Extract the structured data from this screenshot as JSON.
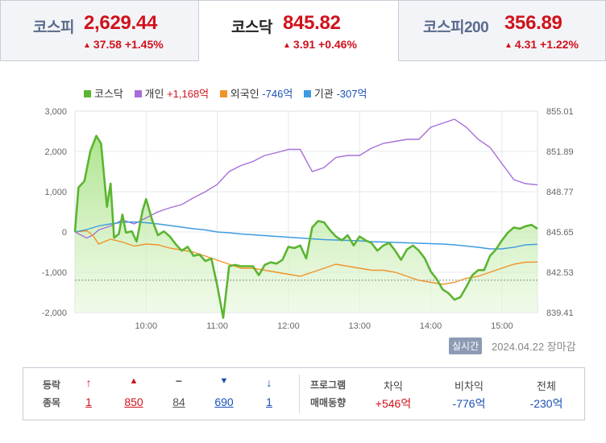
{
  "tabs": [
    {
      "name": "코스피",
      "value": "2,629.44",
      "change": "37.58 +1.45%",
      "active": false
    },
    {
      "name": "코스닥",
      "value": "845.82",
      "change": "3.91 +0.46%",
      "active": true
    },
    {
      "name": "코스피200",
      "value": "356.89",
      "change": "4.31 +1.22%",
      "active": false
    }
  ],
  "legend": {
    "kosdaq": {
      "label": "코스닥",
      "color": "#5cb531"
    },
    "individual": {
      "label": "개인",
      "value": "+1,168억",
      "color": "#a86fd8"
    },
    "foreign": {
      "label": "외국인",
      "value": "-746억",
      "color": "#f0932b"
    },
    "institution": {
      "label": "기관",
      "value": "-307억",
      "color": "#3d9be0"
    }
  },
  "status": {
    "realtime": "실시간",
    "date": "2024.04.22",
    "session": "장마감"
  },
  "breadth": {
    "header_top": "등락",
    "header_bottom": "종목",
    "upper_limit": "1",
    "rise": "850",
    "flat": "84",
    "fall": "690",
    "lower_limit": "1"
  },
  "program": {
    "label_top": "프로그램",
    "label_bottom": "매매동향",
    "arbitrage_label": "차익",
    "arbitrage_value": "+546억",
    "non_arbitrage_label": "비차익",
    "non_arbitrage_value": "-776억",
    "total_label": "전체",
    "total_value": "-230억"
  },
  "chart_data": {
    "type": "line",
    "x_ticks": [
      "10:00",
      "11:00",
      "12:00",
      "13:00",
      "14:00",
      "15:00"
    ],
    "y_left_ticks": [
      "3,000",
      "2,000",
      "1,000",
      "0",
      "-1,000",
      "-2,000"
    ],
    "y_left_range": [
      -2000,
      3000
    ],
    "y_right_ticks": [
      "855.01",
      "851.89",
      "848.77",
      "845.65",
      "842.53",
      "839.41"
    ],
    "y_right_range": [
      839.41,
      855.01
    ],
    "reference_line": 841.91,
    "time_range": [
      "09:00",
      "15:30"
    ],
    "series": [
      {
        "name": "코스닥",
        "axis": "right",
        "color": "#5cb531",
        "x": [
          "09:00",
          "09:03",
          "09:08",
          "09:13",
          "09:18",
          "09:22",
          "09:27",
          "09:30",
          "09:33",
          "09:37",
          "09:40",
          "09:43",
          "09:48",
          "09:52",
          "09:57",
          "10:00",
          "10:05",
          "10:10",
          "10:15",
          "10:20",
          "10:25",
          "10:30",
          "10:35",
          "10:40",
          "10:45",
          "10:50",
          "10:55",
          "11:00",
          "11:05",
          "11:10",
          "11:15",
          "11:20",
          "11:25",
          "11:30",
          "11:35",
          "11:40",
          "11:45",
          "11:50",
          "11:55",
          "12:00",
          "12:05",
          "12:10",
          "12:15",
          "12:20",
          "12:25",
          "12:30",
          "12:35",
          "12:40",
          "12:45",
          "12:50",
          "12:55",
          "13:00",
          "13:05",
          "13:10",
          "13:15",
          "13:20",
          "13:25",
          "13:30",
          "13:35",
          "13:40",
          "13:45",
          "13:50",
          "13:55",
          "14:00",
          "14:05",
          "14:10",
          "14:15",
          "14:20",
          "14:25",
          "14:30",
          "14:35",
          "14:40",
          "14:45",
          "14:50",
          "14:55",
          "15:00",
          "15:05",
          "15:10",
          "15:15",
          "15:20",
          "15:25",
          "15:30"
        ],
        "y": [
          845.65,
          849.1,
          849.6,
          851.9,
          853.1,
          852.5,
          847.6,
          849.4,
          845.2,
          845.5,
          847.0,
          845.6,
          845.7,
          844.9,
          847.3,
          848.2,
          846.6,
          845.4,
          845.7,
          845.3,
          844.7,
          844.2,
          844.5,
          843.8,
          843.9,
          843.4,
          843.6,
          841.5,
          839.0,
          843.0,
          843.1,
          843.0,
          843.0,
          843.0,
          842.3,
          843.1,
          843.3,
          843.2,
          843.5,
          844.5,
          844.4,
          844.6,
          843.6,
          846.0,
          846.5,
          846.4,
          845.8,
          845.3,
          845.0,
          845.4,
          844.6,
          845.3,
          845.0,
          844.8,
          844.2,
          844.6,
          844.8,
          844.2,
          843.5,
          844.3,
          844.6,
          844.2,
          843.6,
          842.6,
          842.0,
          841.2,
          840.9,
          840.4,
          840.6,
          841.4,
          842.3,
          842.7,
          842.7,
          843.8,
          844.3,
          845.0,
          845.6,
          846.0,
          845.9,
          846.1,
          846.2,
          845.9
        ]
      },
      {
        "name": "개인",
        "axis": "left",
        "color": "#a86fd8",
        "x": [
          "09:00",
          "09:10",
          "09:15",
          "09:20",
          "09:30",
          "09:40",
          "09:50",
          "10:00",
          "10:10",
          "10:20",
          "10:30",
          "10:40",
          "10:50",
          "11:00",
          "11:10",
          "11:20",
          "11:30",
          "11:40",
          "11:50",
          "12:00",
          "12:10",
          "12:20",
          "12:30",
          "12:40",
          "12:50",
          "13:00",
          "13:10",
          "13:20",
          "13:30",
          "13:40",
          "13:50",
          "14:00",
          "14:10",
          "14:20",
          "14:30",
          "14:40",
          "14:50",
          "15:00",
          "15:10",
          "15:20",
          "15:30"
        ],
        "y": [
          0,
          -150,
          -80,
          50,
          150,
          300,
          200,
          350,
          500,
          600,
          680,
          850,
          1000,
          1180,
          1500,
          1650,
          1750,
          1900,
          1970,
          2050,
          2050,
          1500,
          1600,
          1850,
          1900,
          1900,
          2080,
          2200,
          2250,
          2300,
          2300,
          2600,
          2700,
          2800,
          2600,
          2300,
          2100,
          1700,
          1300,
          1200,
          1168
        ]
      },
      {
        "name": "외국인",
        "axis": "left",
        "color": "#f0932b",
        "x": [
          "09:00",
          "09:10",
          "09:15",
          "09:20",
          "09:30",
          "09:40",
          "09:50",
          "10:00",
          "10:10",
          "10:20",
          "10:30",
          "10:40",
          "10:50",
          "11:00",
          "11:10",
          "11:20",
          "11:30",
          "11:40",
          "11:50",
          "12:00",
          "12:10",
          "12:20",
          "12:30",
          "12:40",
          "12:50",
          "13:00",
          "13:10",
          "13:20",
          "13:30",
          "13:40",
          "13:50",
          "14:00",
          "14:10",
          "14:20",
          "14:30",
          "14:40",
          "14:50",
          "15:00",
          "15:10",
          "15:20",
          "15:30"
        ],
        "y": [
          0,
          30,
          -80,
          -300,
          -180,
          -250,
          -350,
          -300,
          -320,
          -400,
          -450,
          -500,
          -600,
          -700,
          -800,
          -900,
          -900,
          -950,
          -1000,
          -1050,
          -1100,
          -1000,
          -900,
          -800,
          -850,
          -900,
          -950,
          -950,
          -1000,
          -1100,
          -1200,
          -1250,
          -1300,
          -1250,
          -1150,
          -1100,
          -1000,
          -900,
          -800,
          -750,
          -746
        ]
      },
      {
        "name": "기관",
        "axis": "left",
        "color": "#3d9be0",
        "x": [
          "09:00",
          "09:10",
          "09:20",
          "09:30",
          "09:40",
          "09:50",
          "10:00",
          "10:10",
          "10:20",
          "10:30",
          "10:40",
          "10:50",
          "11:00",
          "11:10",
          "11:20",
          "11:30",
          "11:40",
          "11:50",
          "12:00",
          "12:10",
          "12:20",
          "12:30",
          "12:40",
          "12:50",
          "13:00",
          "13:10",
          "13:20",
          "13:30",
          "13:40",
          "13:50",
          "14:00",
          "14:10",
          "14:20",
          "14:30",
          "14:40",
          "14:50",
          "15:00",
          "15:10",
          "15:20",
          "15:30"
        ],
        "y": [
          0,
          60,
          150,
          200,
          240,
          250,
          230,
          200,
          160,
          120,
          80,
          50,
          0,
          -20,
          -50,
          -70,
          -90,
          -110,
          -130,
          -150,
          -170,
          -190,
          -200,
          -210,
          -220,
          -240,
          -250,
          -260,
          -270,
          -280,
          -290,
          -300,
          -320,
          -350,
          -380,
          -420,
          -420,
          -380,
          -320,
          -307
        ]
      }
    ]
  }
}
